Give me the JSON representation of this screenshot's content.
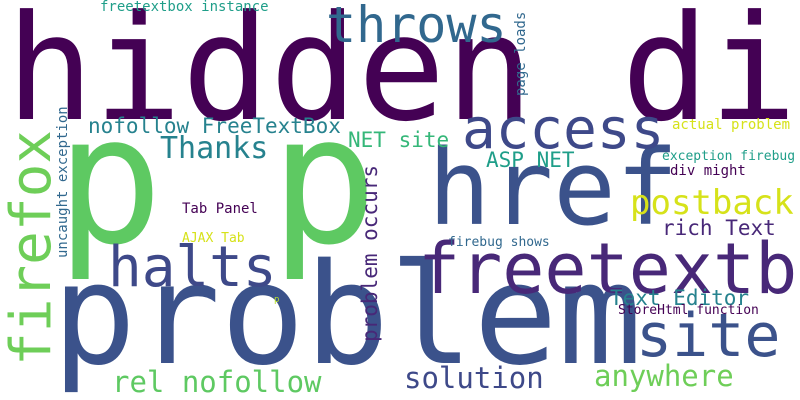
{
  "colors": {
    "background": "#ffffff",
    "dark_purple": "#440154",
    "purple": "#482878",
    "indigo": "#3e4989",
    "blue": "#31688e",
    "teal_blue": "#26828e",
    "teal": "#1f9e89",
    "green": "#35b779",
    "light_green": "#6ece58",
    "bright_green": "#5ec962",
    "yellow_green": "#b5de2b",
    "yellow": "#d6e21a"
  },
  "words": [
    {
      "text": "hidden div",
      "color": "#440154"
    },
    {
      "text": "p p",
      "color": "#5ec962"
    },
    {
      "text": "problem",
      "color": "#3b528b"
    },
    {
      "text": "href",
      "color": "#3b528b"
    },
    {
      "text": "freetextbox",
      "color": "#482878"
    },
    {
      "text": "access",
      "color": "#3e4989"
    },
    {
      "text": "throws",
      "color": "#31688e"
    },
    {
      "text": "halts",
      "color": "#3e4989"
    },
    {
      "text": "site",
      "color": "#3b528b"
    },
    {
      "text": "firefox",
      "color": "#6ece58"
    },
    {
      "text": "postback",
      "color": "#d6e21a"
    },
    {
      "text": "solution",
      "color": "#3e4989"
    },
    {
      "text": "anywhere",
      "color": "#6ece58"
    },
    {
      "text": "rel nofollow",
      "color": "#5ec962"
    },
    {
      "text": "Thanks",
      "color": "#26828e"
    },
    {
      "text": "nofollow FreeTextBox",
      "color": "#26828e"
    },
    {
      "text": "problem occurs",
      "color": "#482878"
    },
    {
      "text": "ASP NET",
      "color": "#1f9e89"
    },
    {
      "text": "NET site",
      "color": "#35b779"
    },
    {
      "text": "rich Text",
      "color": "#482878"
    },
    {
      "text": "Text Editor",
      "color": "#26828e"
    },
    {
      "text": "freetextbox instance",
      "color": "#1f9e89"
    },
    {
      "text": "page loads",
      "color": "#31688e"
    },
    {
      "text": "uncaught exception",
      "color": "#31688e"
    },
    {
      "text": "actual problem",
      "color": "#d6e21a"
    },
    {
      "text": "exception firebug",
      "color": "#1f9e89"
    },
    {
      "text": "div might",
      "color": "#440154"
    },
    {
      "text": "Tab Panel",
      "color": "#440154"
    },
    {
      "text": "AJAX Tab",
      "color": "#d6e21a"
    },
    {
      "text": "firebug shows",
      "color": "#31688e"
    },
    {
      "text": "StoreHtml function",
      "color": "#440154"
    },
    {
      "text": "p",
      "color": "#b5de2b"
    }
  ]
}
